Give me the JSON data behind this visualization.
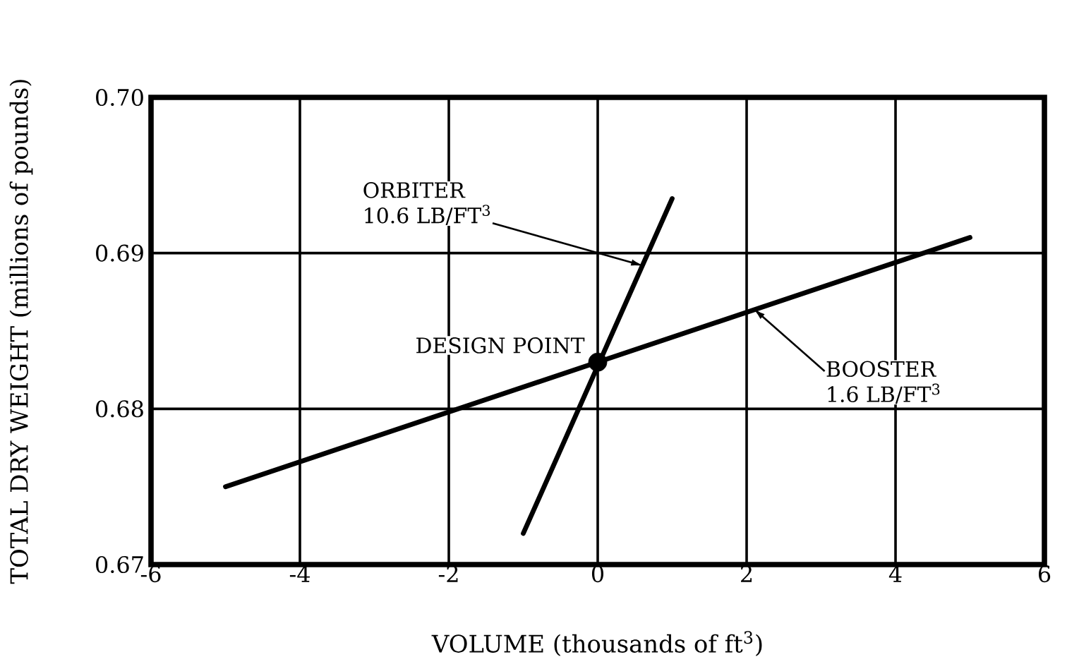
{
  "chart_data": {
    "type": "line",
    "xlabel": "VOLUME (thousands of ft$^{3}$)",
    "ylabel": "TOTAL DRY WEIGHT (millions of pounds)",
    "xlim": [
      -6,
      6
    ],
    "ylim": [
      0.67,
      0.7
    ],
    "xticks": [
      -6,
      -4,
      -2,
      0,
      2,
      4,
      6
    ],
    "yticks": [
      0.67,
      0.68,
      0.69,
      {
        "value": 0.7,
        "label": "0.70"
      }
    ],
    "grid": true,
    "series": [
      {
        "color": "#000000",
        "x": [
          -1,
          1
        ],
        "values": [
          0.672,
          0.6935
        ]
      },
      {
        "color": "#000000",
        "x": [
          -5,
          5
        ],
        "values": [
          0.675,
          0.691
        ]
      },
      {
        "name": "DESIGN POINT",
        "type": "scatter",
        "marker": "circle",
        "color": "#000000",
        "x": [
          0
        ],
        "values": [
          0.683
        ]
      }
    ],
    "annotations": [
      {
        "text": "ORBITER 10.6 LB/FT$^{3}$",
        "x": 0.6,
        "y": 0.6892
      },
      {
        "text": "BOOSTER 1.6 LB/FT$^{3}$",
        "x": 2.1,
        "y": 0.6864
      }
    ]
  }
}
